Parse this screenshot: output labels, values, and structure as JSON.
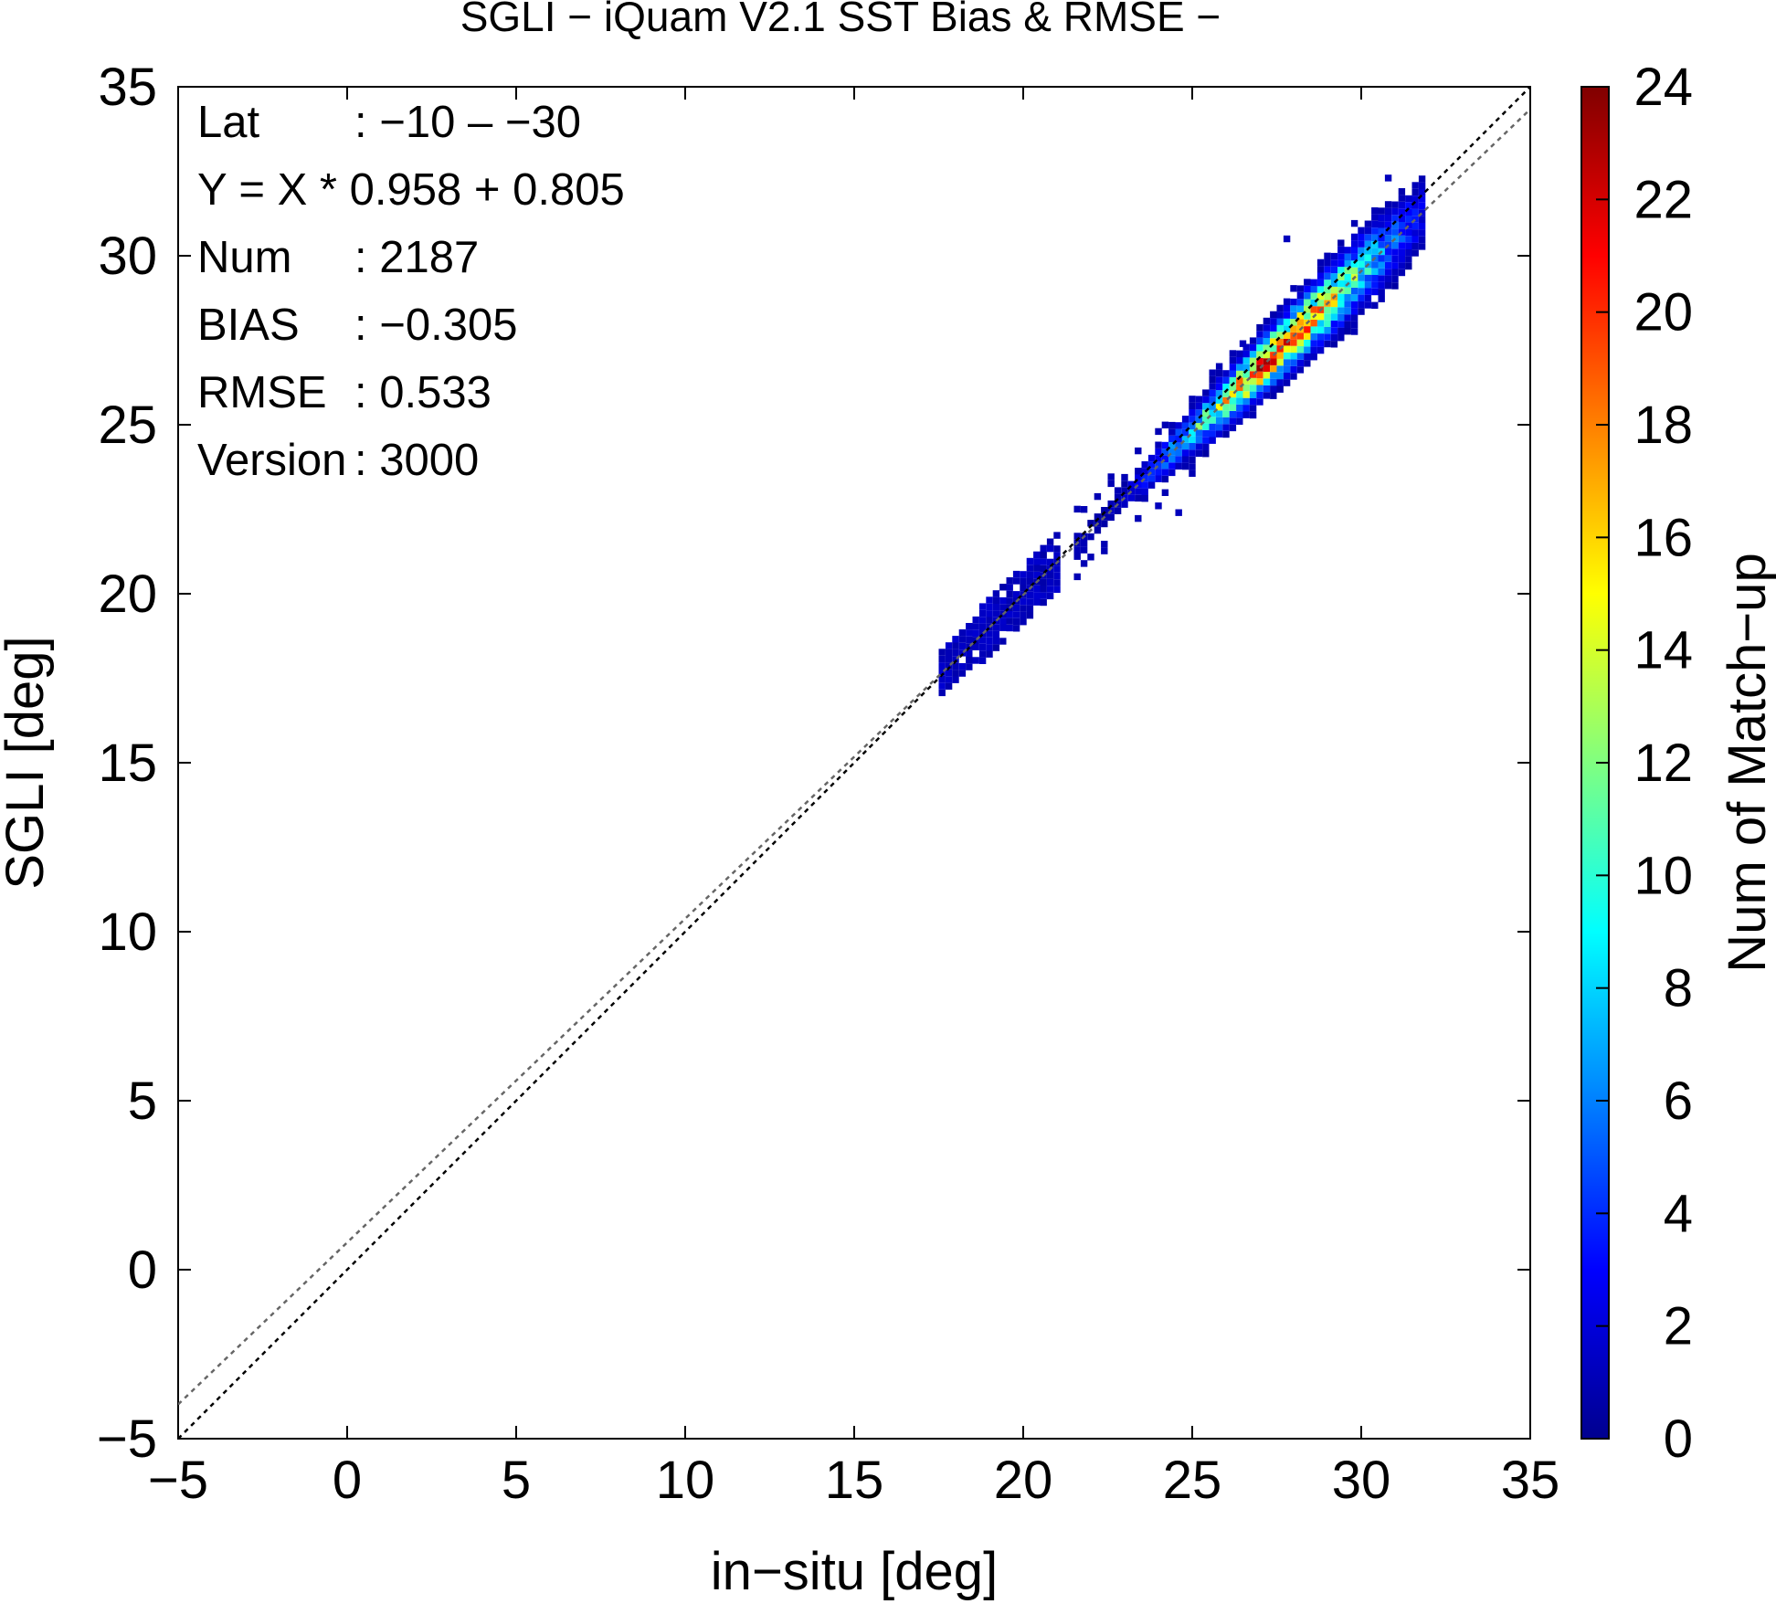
{
  "chart_data": {
    "type": "heatmap",
    "title": "SGLI − iQuam V2.1 SST Bias & RMSE  −",
    "xlabel": "in−situ [deg]",
    "ylabel": "SGLI [deg]",
    "colorbar_label": "Num of Match−up",
    "xlim": [
      -5,
      35
    ],
    "ylim": [
      -5,
      35
    ],
    "clim": [
      0,
      24
    ],
    "x_ticks": [
      -5,
      0,
      5,
      10,
      15,
      20,
      25,
      30,
      35
    ],
    "x_tick_labels": [
      "−5",
      "0",
      "5",
      "10",
      "15",
      "20",
      "25",
      "30",
      "35"
    ],
    "y_ticks": [
      -5,
      0,
      5,
      10,
      15,
      20,
      25,
      30,
      35
    ],
    "y_tick_labels": [
      "−5",
      "0",
      "5",
      "10",
      "15",
      "20",
      "25",
      "30",
      "35"
    ],
    "colorbar_ticks": [
      0,
      2,
      4,
      6,
      8,
      10,
      12,
      14,
      16,
      18,
      20,
      22,
      24
    ],
    "colorbar_tick_labels": [
      "0",
      "2",
      "4",
      "6",
      "8",
      "10",
      "12",
      "14",
      "16",
      "18",
      "20",
      "22",
      "24"
    ],
    "colormap": [
      "#00008f",
      "#0000ff",
      "#0080ff",
      "#00ffff",
      "#80ff80",
      "#ffff00",
      "#ff8000",
      "#ff0000",
      "#800000"
    ],
    "grid": false,
    "reference_lines": [
      {
        "name": "1:1",
        "slope": 1,
        "intercept": 0,
        "color": "#000000",
        "style": "dotted"
      },
      {
        "name": "fit",
        "slope": 0.958,
        "intercept": 0.805,
        "color": "#666666",
        "style": "dotted"
      }
    ],
    "stats": [
      {
        "label": "Lat",
        "value": ": −10 – −30"
      },
      {
        "label": "Y = X * 0.958 + 0.805",
        "value": ""
      },
      {
        "label": "Num",
        "value": ": 2187"
      },
      {
        "label": "BIAS",
        "value": ": −0.305"
      },
      {
        "label": "RMSE",
        "value": ": 0.533"
      },
      {
        "label": "Version",
        "value": ": 3000"
      }
    ],
    "cluster": {
      "x_range": [
        17.5,
        31.7
      ],
      "cell_size": 0.2,
      "fit_slope": 0.958,
      "fit_intercept": 0.805,
      "peak_count": 20,
      "peak_x": 27.5,
      "outliers": [
        [
          24.5,
          22.3
        ],
        [
          27.7,
          30.4
        ],
        [
          30.7,
          32.2
        ],
        [
          26.4,
          27.3
        ],
        [
          23.9,
          22.5
        ]
      ]
    }
  }
}
